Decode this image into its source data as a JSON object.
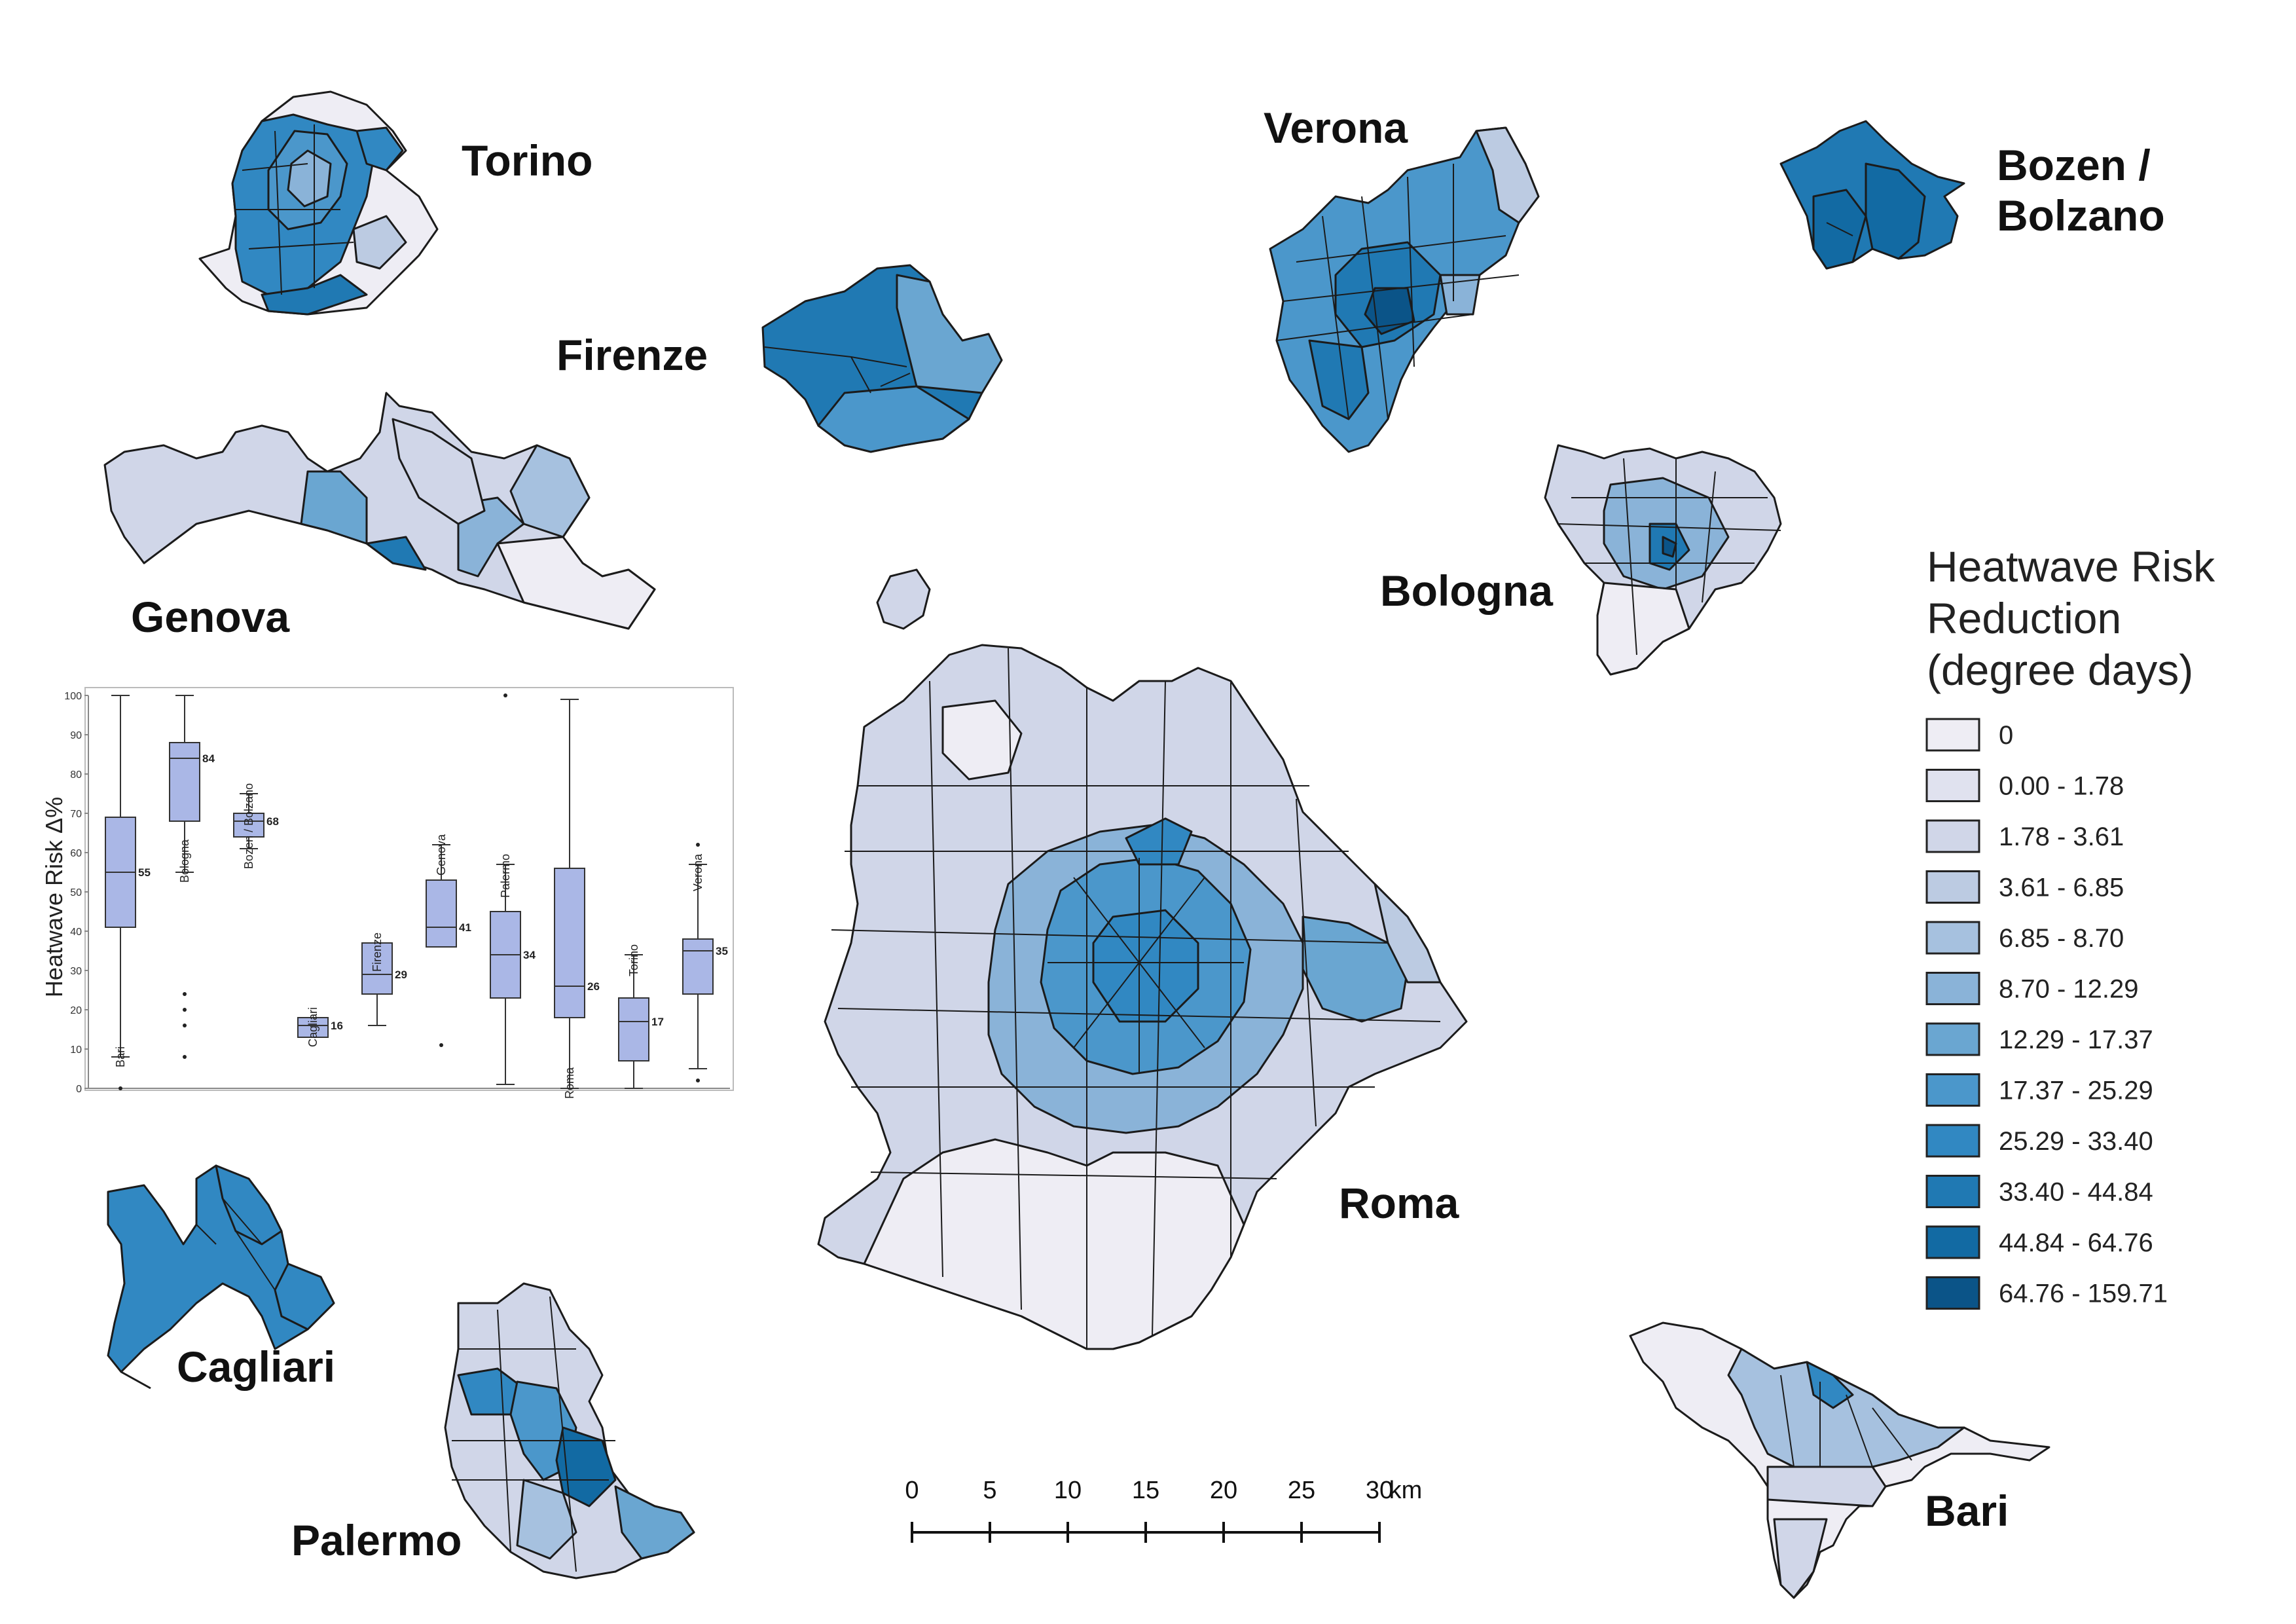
{
  "cities": [
    {
      "id": "torino",
      "name": "Torino"
    },
    {
      "id": "firenze",
      "name": "Firenze"
    },
    {
      "id": "verona",
      "name": "Verona"
    },
    {
      "id": "bolzano",
      "name_lines": [
        "Bozen /",
        "Bolzano"
      ]
    },
    {
      "id": "genova",
      "name": "Genova"
    },
    {
      "id": "bologna",
      "name": "Bologna"
    },
    {
      "id": "roma",
      "name": "Roma"
    },
    {
      "id": "cagliari",
      "name": "Cagliari"
    },
    {
      "id": "palermo",
      "name": "Palermo"
    },
    {
      "id": "bari",
      "name": "Bari"
    }
  ],
  "legend": {
    "title_lines": [
      "Heatwave Risk",
      "Reduction",
      "(degree days)"
    ],
    "classes": [
      {
        "label": "0",
        "color": "#eeedf4"
      },
      {
        "label": "0.00 - 1.78",
        "color": "#e0e2ef"
      },
      {
        "label": "1.78 - 3.61",
        "color": "#d0d6e8"
      },
      {
        "label": "3.61 - 6.85",
        "color": "#bccbe2"
      },
      {
        "label": "6.85 - 8.70",
        "color": "#a6c1df"
      },
      {
        "label": "8.70 - 12.29",
        "color": "#8ab3d8"
      },
      {
        "label": "12.29 - 17.37",
        "color": "#6aa6d1"
      },
      {
        "label": "17.37 - 25.29",
        "color": "#4b97cb"
      },
      {
        "label": "25.29 - 33.40",
        "color": "#3188c2"
      },
      {
        "label": "33.40 - 44.84",
        "color": "#2079b3"
      },
      {
        "label": "44.84 - 64.76",
        "color": "#126aa3"
      },
      {
        "label": "64.76 - 159.71",
        "color": "#0b5488"
      }
    ]
  },
  "scalebar": {
    "ticks": [
      "0",
      "5",
      "10",
      "15",
      "20",
      "25",
      "30"
    ],
    "unit": "km"
  },
  "chart_data": {
    "type": "boxplot",
    "ylabel": "Heatwave Risk Δ%",
    "ylim": [
      0,
      100
    ],
    "yticks": [
      0,
      10,
      20,
      30,
      40,
      50,
      60,
      70,
      80,
      90,
      100
    ],
    "box_color": "#aab7e6",
    "series": [
      {
        "name": "Bari",
        "min": 8,
        "q1": 41,
        "median": 55,
        "q3": 69,
        "max": 100,
        "outliers": [
          0
        ],
        "label": "55"
      },
      {
        "name": "Bologna",
        "min": 55,
        "q1": 68,
        "median": 84,
        "q3": 88,
        "max": 100,
        "outliers": [
          24,
          20,
          16,
          8
        ],
        "label": "84"
      },
      {
        "name": "Bozen / Bolzano",
        "min": 61,
        "q1": 64,
        "median": 68,
        "q3": 70,
        "max": 75,
        "outliers": [],
        "label": "68"
      },
      {
        "name": "Cagliari",
        "min": 13,
        "q1": 13,
        "median": 16,
        "q3": 18,
        "max": 18,
        "outliers": [],
        "label": "16"
      },
      {
        "name": "Firenze",
        "min": 16,
        "q1": 24,
        "median": 29,
        "q3": 37,
        "max": 37,
        "outliers": [],
        "label": "29"
      },
      {
        "name": "Genova",
        "min": 36,
        "q1": 36,
        "median": 41,
        "q3": 53,
        "max": 62,
        "outliers": [
          11
        ],
        "label": "41"
      },
      {
        "name": "Palermo",
        "min": 1,
        "q1": 23,
        "median": 34,
        "q3": 45,
        "max": 57,
        "outliers": [
          100
        ],
        "label": "34"
      },
      {
        "name": "Roma",
        "min": 0,
        "q1": 18,
        "median": 26,
        "q3": 56,
        "max": 99,
        "outliers": [],
        "label": "26"
      },
      {
        "name": "Torino",
        "min": 0,
        "q1": 7,
        "median": 17,
        "q3": 23,
        "max": 34,
        "outliers": [],
        "label": "17"
      },
      {
        "name": "Verona",
        "min": 5,
        "q1": 24,
        "median": 35,
        "q3": 38,
        "max": 57,
        "outliers": [
          2,
          62
        ],
        "label": "35"
      }
    ]
  }
}
